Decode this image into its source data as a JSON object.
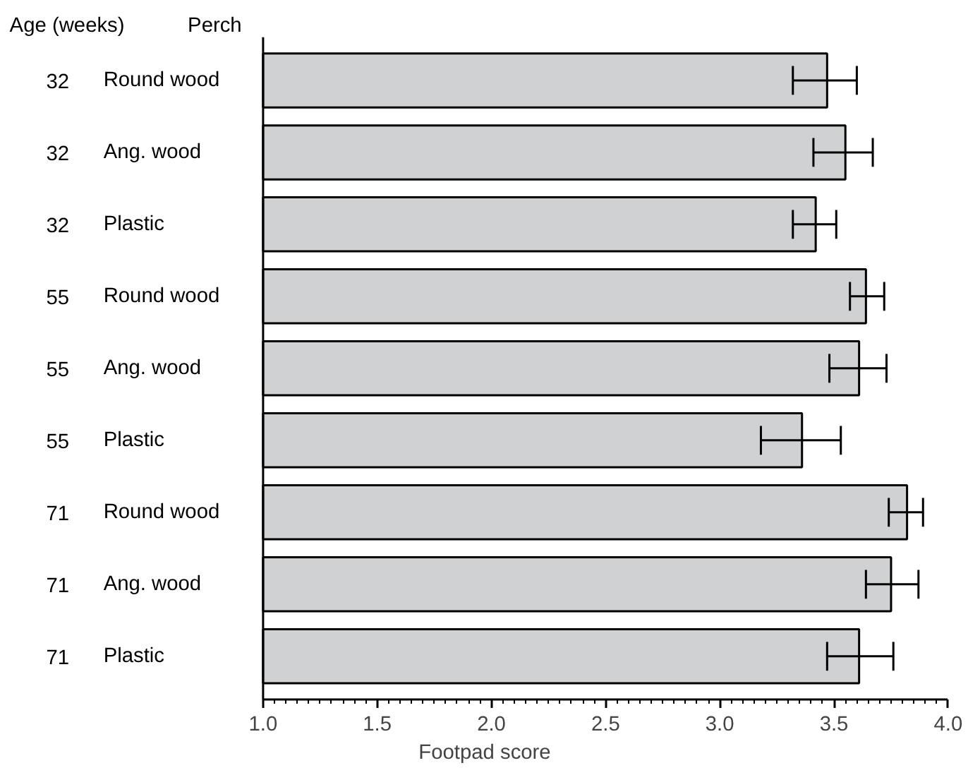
{
  "chart_data": {
    "type": "bar",
    "orientation": "horizontal",
    "xlabel": "Footpad score",
    "categories": [
      "32 Round wood",
      "32 Ang. wood",
      "32 Plastic",
      "55 Round wood",
      "55 Ang. wood",
      "55 Plastic",
      "71 Round wood",
      "71 Ang. wood",
      "71 Plastic"
    ],
    "annotations": [
      "Age (weeks)",
      "Perch"
    ],
    "values": [
      3.47,
      3.55,
      3.42,
      3.64,
      3.61,
      3.36,
      3.82,
      3.75,
      3.61
    ],
    "errors": [
      [
        3.32,
        3.6
      ],
      [
        3.41,
        3.67
      ],
      [
        3.32,
        3.51
      ],
      [
        3.57,
        3.72
      ],
      [
        3.48,
        3.73
      ],
      [
        3.18,
        3.53
      ],
      [
        3.74,
        3.89
      ],
      [
        3.64,
        3.87
      ],
      [
        3.47,
        3.76
      ]
    ],
    "color": "#d0d1d3",
    "xlim": [
      1.0,
      4.0
    ],
    "xticks": [
      {
        "value": 1,
        "label": "1.0"
      },
      1.5,
      {
        "value": 2,
        "label": "2.0"
      },
      2.5,
      {
        "value": 3,
        "label": "3.0"
      },
      3.5,
      {
        "value": 4,
        "label": "4.0"
      }
    ],
    "grid": false
  }
}
